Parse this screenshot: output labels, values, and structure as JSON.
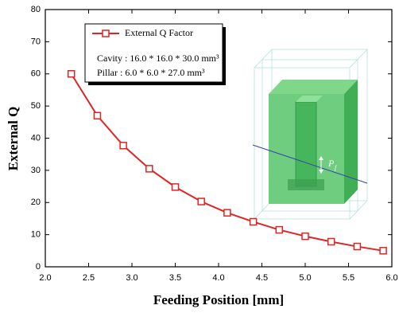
{
  "chart_data": {
    "type": "line",
    "x_label": "Feeding Position [mm]",
    "y_label": "External Q",
    "series": [
      {
        "name": "External Q Factor",
        "color": "#e02424",
        "x": [
          2.3,
          2.6,
          2.9,
          3.2,
          3.5,
          3.8,
          4.1,
          4.4,
          4.7,
          5.0,
          5.3,
          5.6,
          5.9
        ],
        "values": [
          60,
          47,
          37.7,
          30.5,
          24.8,
          20.3,
          16.8,
          14,
          11.5,
          9.5,
          7.8,
          6.3,
          5
        ]
      }
    ],
    "annotations": [
      "Cavity : 16.0 * 16.0 * 30.0 mm³",
      "Pillar : 6.0 * 6.0 * 27.0 mm³"
    ],
    "inset_label": "P",
    "inset_label_sub": "f",
    "xlim": [
      2,
      6
    ],
    "xticks": [
      {
        "value": 2,
        "label": "2.0"
      },
      {
        "value": 2.5,
        "label": "2.5"
      },
      {
        "value": 3,
        "label": "3.0"
      },
      {
        "value": 3.5,
        "label": "3.5"
      },
      {
        "value": 4,
        "label": "4.0"
      },
      {
        "value": 4.5,
        "label": "4.5"
      },
      {
        "value": 5,
        "label": "5.0"
      },
      {
        "value": 5.5,
        "label": "5.5"
      },
      {
        "value": 6,
        "label": "6.0"
      }
    ],
    "ylim": [
      0,
      80
    ],
    "yticks": [
      0,
      10,
      20,
      30,
      40,
      50,
      60,
      70,
      80
    ]
  }
}
